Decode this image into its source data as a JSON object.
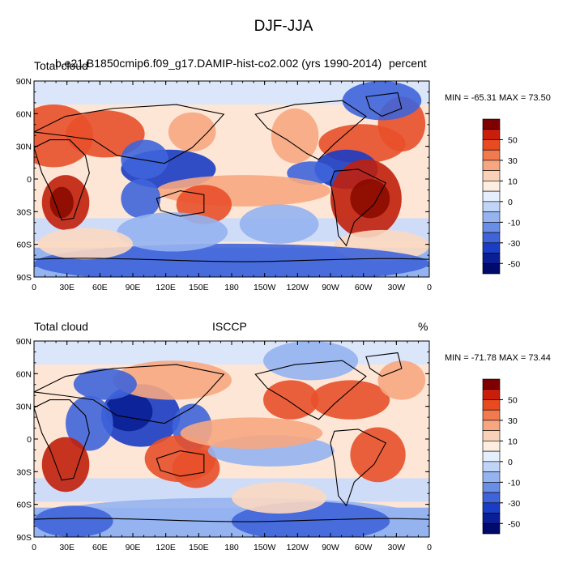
{
  "title": "DJF-JJA",
  "panels": [
    {
      "left_text": "Total cloud",
      "center_text": "b.e21.B1850cmip6.f09_g17.DAMIP-hist-co2.002 (yrs 1990-2014)",
      "right_text": "percent",
      "minmax": "MIN = -65.31 MAX =  73.50"
    },
    {
      "left_text": "Total cloud",
      "center_text": "ISCCP",
      "right_text": "%",
      "minmax": "MIN = -71.78 MAX =  73.44"
    }
  ],
  "chart_data": [
    {
      "type": "heatmap",
      "title": "DJF-JJA",
      "series_label": "Total cloud",
      "source": "b.e21.B1850cmip6.f09_g17.DAMIP-hist-co2.002 (yrs 1990-2014)",
      "units": "percent",
      "min": -65.31,
      "max": 73.5,
      "xlim": [
        0,
        360
      ],
      "ylim": [
        -90,
        90
      ],
      "x_tick_labels": [
        "0",
        "30E",
        "60E",
        "90E",
        "120E",
        "150E",
        "180",
        "150W",
        "120W",
        "90W",
        "60W",
        "30W",
        "0"
      ],
      "y_tick_labels": [
        "90N",
        "60N",
        "30N",
        "0",
        "30S",
        "60S",
        "90S"
      ]
    },
    {
      "type": "heatmap",
      "title": "DJF-JJA",
      "series_label": "Total cloud",
      "source": "ISCCP",
      "units": "%",
      "min": -71.78,
      "max": 73.44,
      "xlim": [
        0,
        360
      ],
      "ylim": [
        -90,
        90
      ],
      "x_tick_labels": [
        "0",
        "30E",
        "60E",
        "90E",
        "120E",
        "150E",
        "180",
        "150W",
        "120W",
        "90W",
        "60W",
        "30W",
        "0"
      ],
      "y_tick_labels": [
        "90N",
        "60N",
        "30N",
        "0",
        "30S",
        "60S",
        "90S"
      ]
    }
  ],
  "colorbar": {
    "levels_labeled": [
      "50",
      "30",
      "10",
      "0",
      "-10",
      "-30",
      "-50"
    ],
    "colors": [
      "#7f0000",
      "#c81e0a",
      "#e84b1f",
      "#f27a4e",
      "#f6a781",
      "#f9d1b8",
      "#fdeee2",
      "#e4eefc",
      "#bfd4f7",
      "#95b3ef",
      "#6a8ee5",
      "#3f64d9",
      "#1b3cc4",
      "#0a1f95",
      "#000a6b"
    ]
  }
}
